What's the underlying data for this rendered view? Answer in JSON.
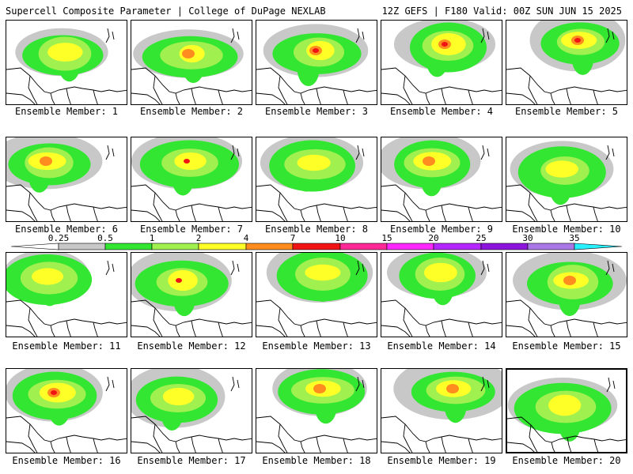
{
  "header": {
    "title": "Supercell Composite Parameter | College of DuPage NEXLAB",
    "run_info": "12Z GEFS | F180 Valid: 00Z SUN JUN 15 2025"
  },
  "colorbar": {
    "ticks": [
      "0.25",
      "0.5",
      "1",
      "2",
      "4",
      "7",
      "10",
      "15",
      "20",
      "25",
      "30",
      "35"
    ],
    "colors": [
      "#ffffff",
      "#c8c8c8",
      "#32e632",
      "#a0f050",
      "#ffff28",
      "#ff8c1e",
      "#f01414",
      "#ff2896",
      "#ff28ff",
      "#b428ff",
      "#8c14dc",
      "#aa78e6",
      "#28f0ff"
    ]
  },
  "members": [
    {
      "label": "Ensemble Member: 1"
    },
    {
      "label": "Ensemble Member: 2"
    },
    {
      "label": "Ensemble Member: 3"
    },
    {
      "label": "Ensemble Member: 4"
    },
    {
      "label": "Ensemble Member: 5"
    },
    {
      "label": "Ensemble Member: 6"
    },
    {
      "label": "Ensemble Member: 7"
    },
    {
      "label": "Ensemble Member: 8"
    },
    {
      "label": "Ensemble Member: 9"
    },
    {
      "label": "Ensemble Member: 10"
    },
    {
      "label": "Ensemble Member: 11"
    },
    {
      "label": "Ensemble Member: 12"
    },
    {
      "label": "Ensemble Member: 13"
    },
    {
      "label": "Ensemble Member: 14"
    },
    {
      "label": "Ensemble Member: 15"
    },
    {
      "label": "Ensemble Member: 16"
    },
    {
      "label": "Ensemble Member: 17"
    },
    {
      "label": "Ensemble Member: 18"
    },
    {
      "label": "Ensemble Member: 19"
    },
    {
      "label": "Ensemble Member: 20"
    }
  ]
}
